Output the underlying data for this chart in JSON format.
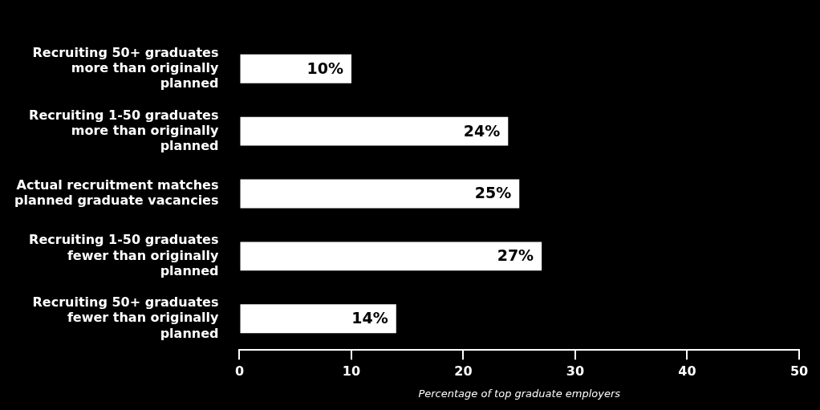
{
  "chart_data": {
    "type": "bar",
    "orientation": "horizontal",
    "xlabel": "Percentage of top graduate employers",
    "categories": [
      "Recruiting 50+ graduates more than originally planned",
      "Recruiting 1-50 graduates more than originally planned",
      "Actual recruitment matches planned graduate vacancies",
      "Recruiting 1-50 graduates fewer than originally planned",
      "Recruiting 50+ graduates fewer than originally planned"
    ],
    "values": [
      10,
      24,
      25,
      27,
      14
    ],
    "color": "#ffffff",
    "data_labels": true,
    "value_labels": [
      "10%",
      "24%",
      "25%",
      "27%",
      "14%"
    ],
    "xlim": [
      0,
      50
    ],
    "xticks": [
      0,
      10,
      20,
      30,
      40,
      50
    ],
    "grid": false,
    "legend": false
  }
}
